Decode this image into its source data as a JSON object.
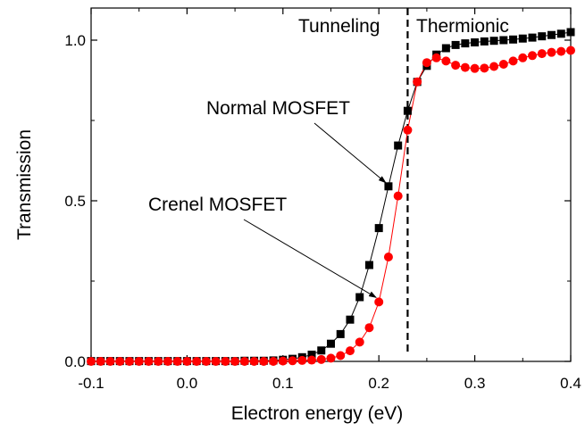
{
  "chart_data": {
    "type": "scatter",
    "xlabel": "Electron energy (eV)",
    "ylabel": "Transmission",
    "xlim": [
      -0.1,
      0.4
    ],
    "ylim": [
      0.0,
      1.1
    ],
    "x_ticks": [
      -0.1,
      0.0,
      0.1,
      0.2,
      0.3,
      0.4
    ],
    "x_tick_labels": [
      "-0.1",
      "0.0",
      "0.1",
      "0.2",
      "0.3",
      "0.4"
    ],
    "y_ticks": [
      0.0,
      0.5,
      1.0
    ],
    "y_tick_labels": [
      "0.0",
      "0.5",
      "1.0"
    ],
    "grid": false,
    "colors": {
      "normal": "#000000",
      "crenel": "#ff0000",
      "axis": "#000000"
    },
    "series": [
      {
        "name": "Normal MOSFET",
        "marker": "square",
        "x": [
          -0.1,
          -0.09,
          -0.08,
          -0.07,
          -0.06,
          -0.05,
          -0.04,
          -0.03,
          -0.02,
          -0.01,
          0.0,
          0.01,
          0.02,
          0.03,
          0.04,
          0.05,
          0.06,
          0.07,
          0.08,
          0.09,
          0.1,
          0.11,
          0.12,
          0.13,
          0.14,
          0.15,
          0.16,
          0.17,
          0.18,
          0.19,
          0.2,
          0.21,
          0.22,
          0.23,
          0.24,
          0.25,
          0.26,
          0.27,
          0.28,
          0.29,
          0.3,
          0.31,
          0.32,
          0.33,
          0.34,
          0.35,
          0.36,
          0.37,
          0.38,
          0.39,
          0.4
        ],
        "y": [
          0.001,
          0.001,
          0.001,
          0.001,
          0.001,
          0.001,
          0.001,
          0.001,
          0.001,
          0.001,
          0.001,
          0.001,
          0.001,
          0.001,
          0.001,
          0.001,
          0.002,
          0.002,
          0.002,
          0.003,
          0.005,
          0.008,
          0.013,
          0.021,
          0.034,
          0.055,
          0.085,
          0.13,
          0.2,
          0.3,
          0.415,
          0.545,
          0.672,
          0.78,
          0.87,
          0.92,
          0.955,
          0.975,
          0.985,
          0.99,
          0.993,
          0.996,
          0.998,
          1.0,
          1.002,
          1.005,
          1.008,
          1.012,
          1.016,
          1.02,
          1.025
        ]
      },
      {
        "name": "Crenel MOSFET",
        "marker": "circle",
        "x": [
          -0.1,
          -0.09,
          -0.08,
          -0.07,
          -0.06,
          -0.05,
          -0.04,
          -0.03,
          -0.02,
          -0.01,
          0.0,
          0.01,
          0.02,
          0.03,
          0.04,
          0.05,
          0.06,
          0.07,
          0.08,
          0.09,
          0.1,
          0.11,
          0.12,
          0.13,
          0.14,
          0.15,
          0.16,
          0.17,
          0.18,
          0.19,
          0.2,
          0.21,
          0.22,
          0.23,
          0.24,
          0.25,
          0.26,
          0.27,
          0.28,
          0.29,
          0.3,
          0.31,
          0.32,
          0.33,
          0.34,
          0.35,
          0.36,
          0.37,
          0.38,
          0.39,
          0.4
        ],
        "y": [
          0.0,
          0.0,
          0.0,
          0.0,
          0.0,
          0.0,
          0.0,
          0.0,
          0.0,
          0.0,
          0.0,
          0.0,
          0.0,
          0.0,
          0.0,
          0.0,
          0.0,
          0.0,
          0.0,
          0.0,
          0.001,
          0.002,
          0.003,
          0.004,
          0.006,
          0.01,
          0.018,
          0.033,
          0.06,
          0.105,
          0.185,
          0.325,
          0.515,
          0.72,
          0.87,
          0.93,
          0.945,
          0.935,
          0.922,
          0.915,
          0.912,
          0.913,
          0.918,
          0.925,
          0.935,
          0.945,
          0.952,
          0.958,
          0.962,
          0.965,
          0.968
        ]
      }
    ],
    "divider": {
      "x": 0.23
    },
    "annotations": [
      {
        "text": "Tunneling"
      },
      {
        "text": "Thermionic"
      },
      {
        "text": "Normal MOSFET",
        "series": "Normal MOSFET",
        "point_x": 0.21
      },
      {
        "text": "Crenel MOSFET",
        "series": "Crenel MOSFET",
        "point_x": 0.2
      }
    ]
  }
}
